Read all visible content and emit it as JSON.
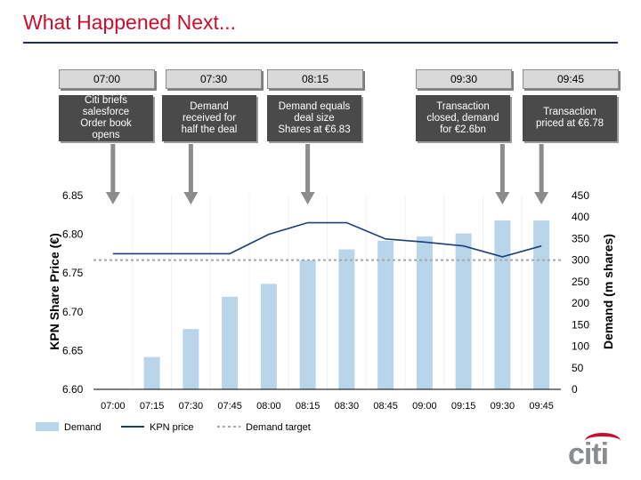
{
  "page": {
    "title": "What Happened Next...",
    "logo_text": "citi"
  },
  "timeline": [
    {
      "time": "07:00",
      "event": "Citi briefs\nsalesforce\nOrder book\nopens"
    },
    {
      "time": "07:30",
      "event": "Demand\nreceived for\nhalf the deal"
    },
    {
      "time": "08:15",
      "event": "Demand equals\ndeal size\nShares at €6.83"
    },
    {
      "time": "09:30",
      "event": "Transaction\nclosed, demand\nfor €2.6bn"
    },
    {
      "time": "09:45",
      "event": "Transaction\npriced at €6.78"
    }
  ],
  "chart_data": {
    "type": "bar",
    "categories": [
      "07:00",
      "07:15",
      "07:30",
      "07:45",
      "08:00",
      "08:15",
      "08:30",
      "08:45",
      "09:00",
      "09:15",
      "09:30",
      "09:45"
    ],
    "series": [
      {
        "name": "Demand",
        "type": "bar",
        "axis": "right",
        "values": [
          0,
          75,
          140,
          215,
          245,
          300,
          325,
          345,
          355,
          362,
          392,
          392
        ]
      },
      {
        "name": "KPN price",
        "type": "line",
        "axis": "left",
        "values": [
          6.775,
          6.775,
          6.775,
          6.775,
          6.8,
          6.815,
          6.815,
          6.794,
          6.79,
          6.785,
          6.771,
          6.785
        ]
      },
      {
        "name": "Demand target",
        "type": "line",
        "axis": "right",
        "dashed": true,
        "values": [
          300,
          300,
          300,
          300,
          300,
          300,
          300,
          300,
          300,
          300,
          300,
          300
        ]
      }
    ],
    "ylabel": "KPN Share Price (€)",
    "y2label": "Demand (m shares)",
    "ylim": [
      6.6,
      6.85
    ],
    "y2lim": [
      0,
      450
    ],
    "yticks": [
      "6.60",
      "6.65",
      "6.70",
      "6.75",
      "6.80",
      "6.85"
    ],
    "y2ticks": [
      "0",
      "50",
      "100",
      "150",
      "200",
      "250",
      "300",
      "350",
      "400",
      "450"
    ],
    "legend": [
      "Demand",
      "KPN price",
      "Demand target"
    ],
    "colors": {
      "bar": "#b8d5ea",
      "line": "#1f3d7a",
      "target": "#a6a6a6",
      "arrow": "#8c8c8c"
    }
  }
}
